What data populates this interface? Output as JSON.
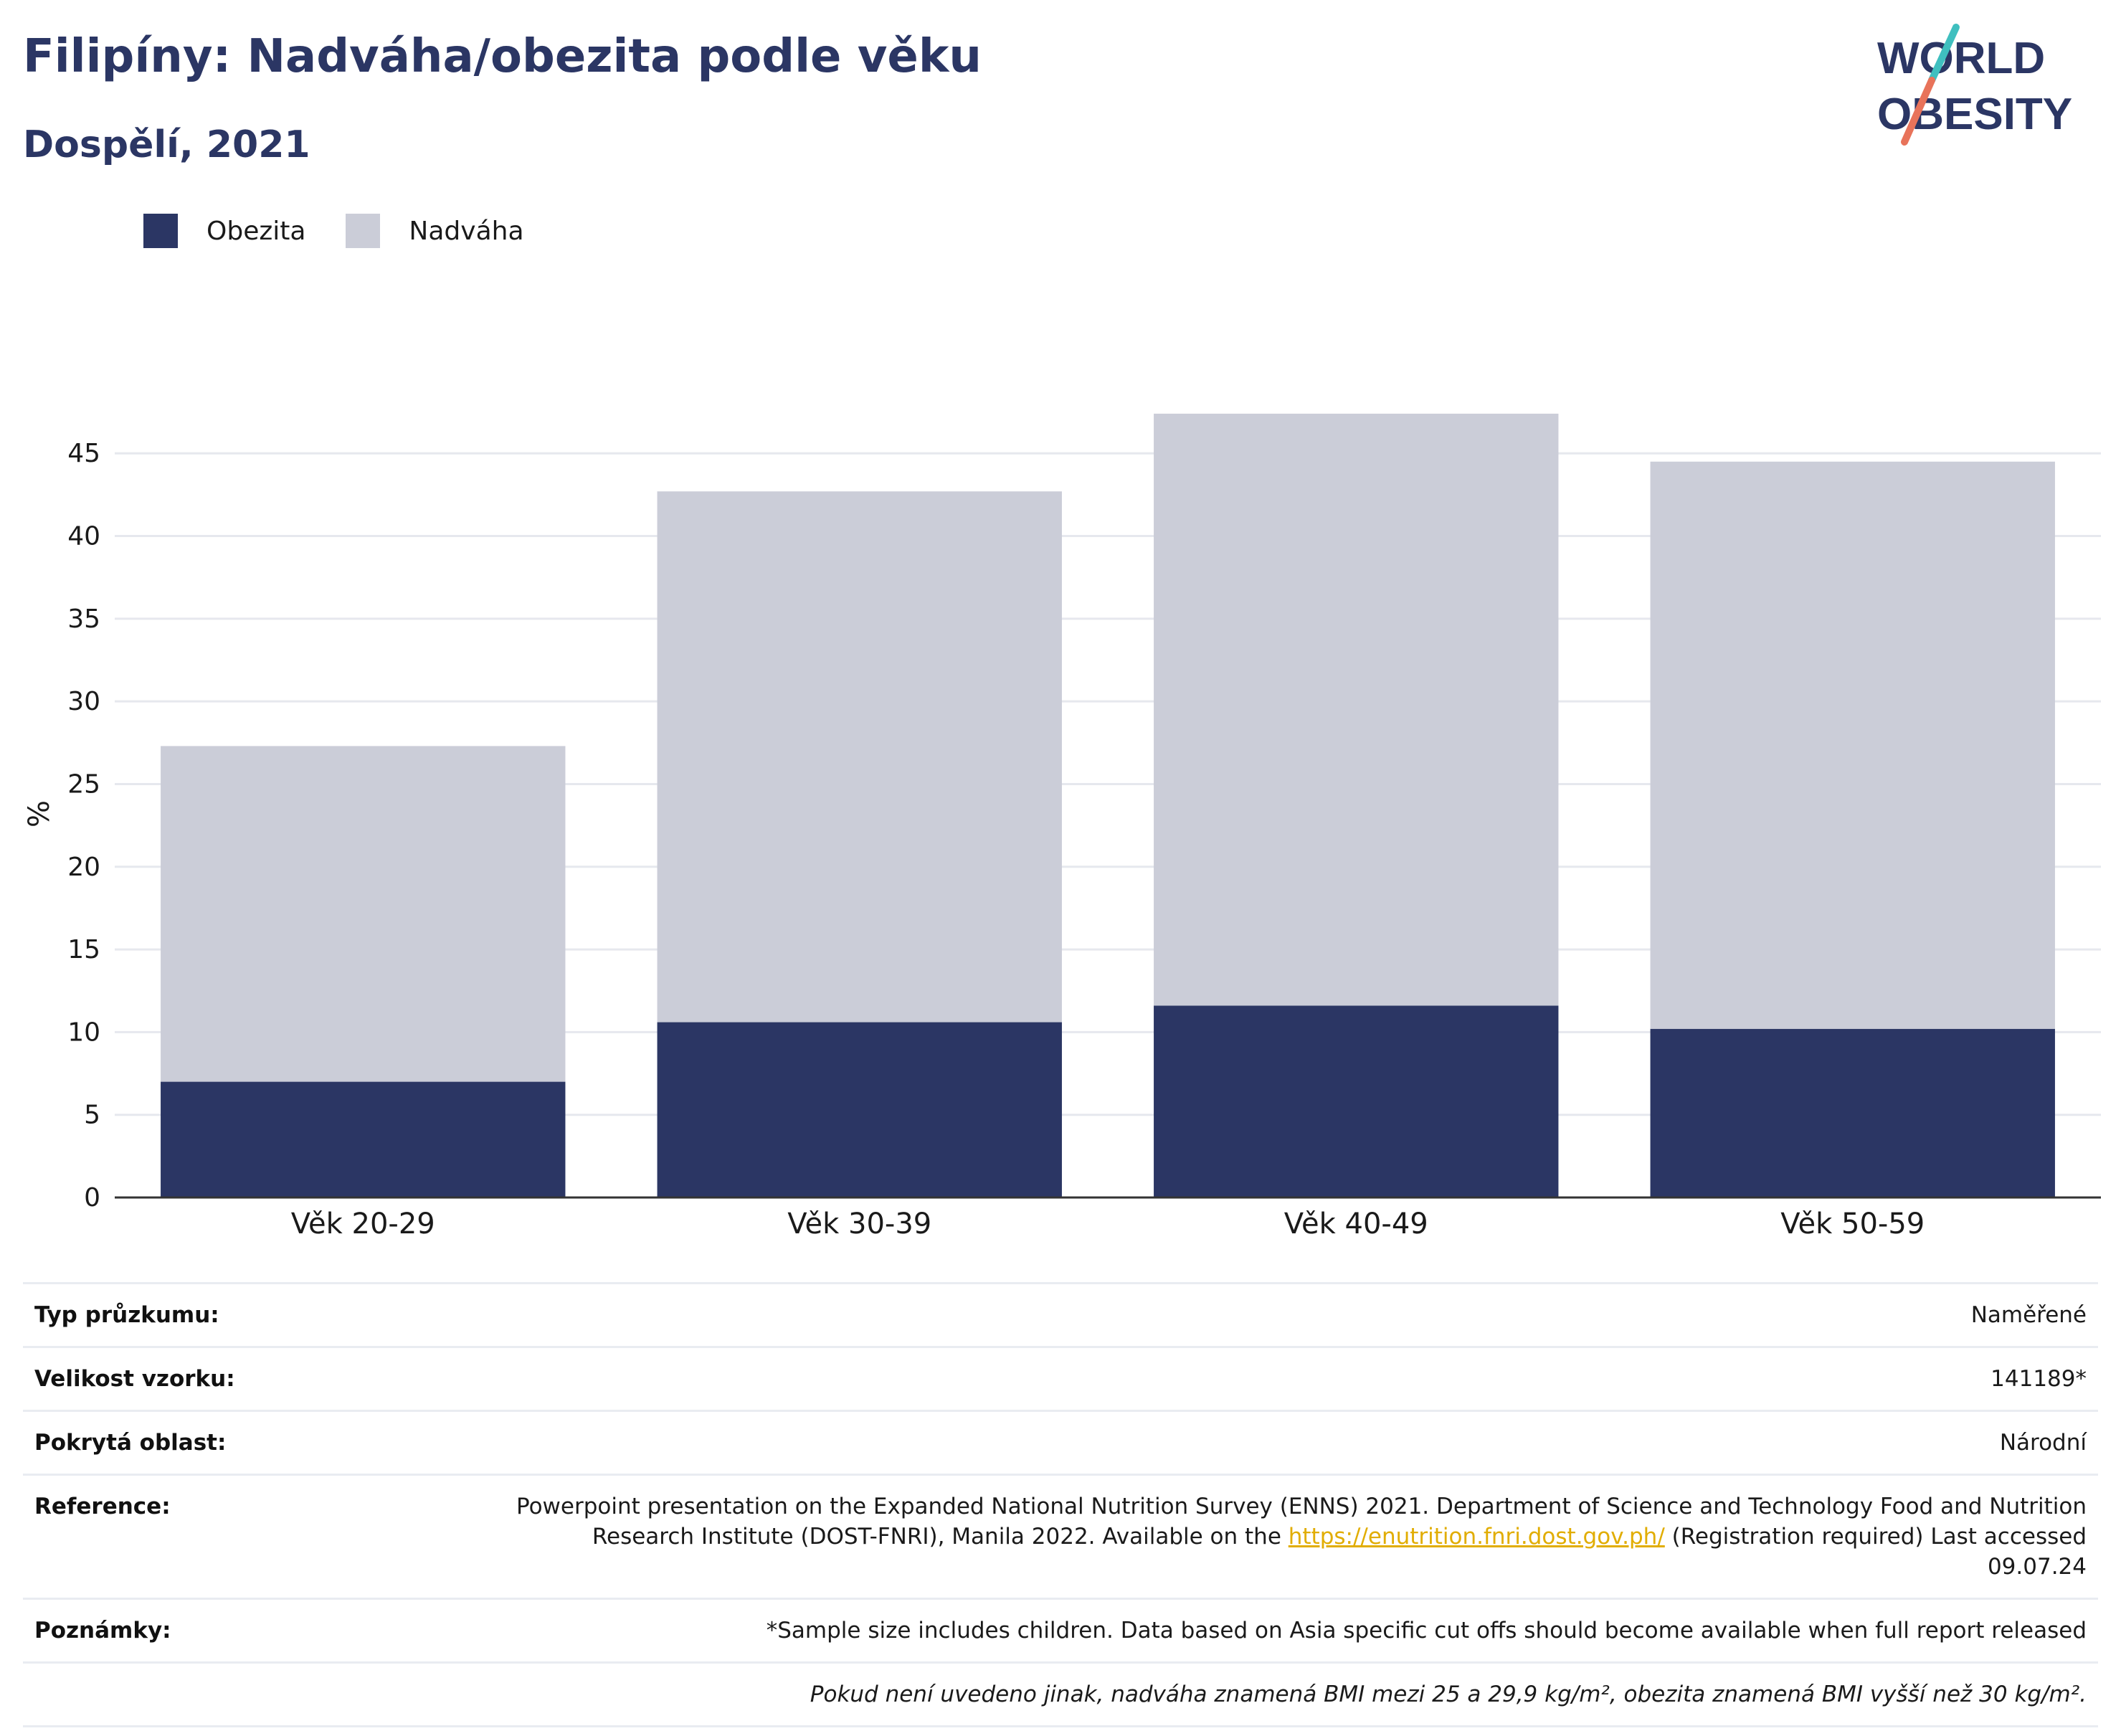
{
  "header": {
    "title": "Filipíny: Nadváha/obezita podle věku",
    "subtitle": "Dospělí, 2021",
    "logo_text": "WORLD OBESITY"
  },
  "legend": {
    "items": [
      {
        "label": "Obezita",
        "color": "#2b3664"
      },
      {
        "label": "Nadváha",
        "color": "#cbcdd8"
      }
    ]
  },
  "chart_data": {
    "type": "bar",
    "stacked": true,
    "categories": [
      "Věk 20-29",
      "Věk 30-39",
      "Věk 40-49",
      "Věk 50-59"
    ],
    "series": [
      {
        "name": "Obezita",
        "color": "#2b3664",
        "values": [
          7.0,
          10.6,
          11.6,
          10.2
        ]
      },
      {
        "name": "Nadváha",
        "color": "#cbcdd8",
        "values": [
          20.3,
          32.1,
          35.8,
          34.3
        ]
      }
    ],
    "ylabel": "%",
    "ylim": [
      0,
      49
    ],
    "yticks": [
      0,
      5,
      10,
      15,
      20,
      25,
      30,
      35,
      40,
      45
    ],
    "grid": true,
    "legend_position": "top-left"
  },
  "info": {
    "rows": [
      {
        "label": "Typ průzkumu:",
        "value": "Naměřené"
      },
      {
        "label": "Velikost vzorku:",
        "value": "141189*"
      },
      {
        "label": "Pokrytá oblast:",
        "value": "Národní"
      },
      {
        "label": "Reference:",
        "value_before": "Powerpoint presentation on the Expanded National Nutrition Survey (ENNS) 2021. Department of Science and Technology Food and Nutrition Research Institute (DOST-FNRI), Manila 2022. Available on the",
        "link": "https://enutrition.fnri.dost.gov.ph/",
        "value_after": "(Registration required) Last accessed 09.07.24"
      },
      {
        "label": "Poznámky:",
        "value": "*Sample size includes children. Data based on Asia specific cut offs should become available when full report released"
      }
    ],
    "footnote": "Pokud není uvedeno jinak, nadváha znamená BMI mezi 25 a 29,9 kg/m², obezita znamená BMI vyšší než 30 kg/m²."
  }
}
